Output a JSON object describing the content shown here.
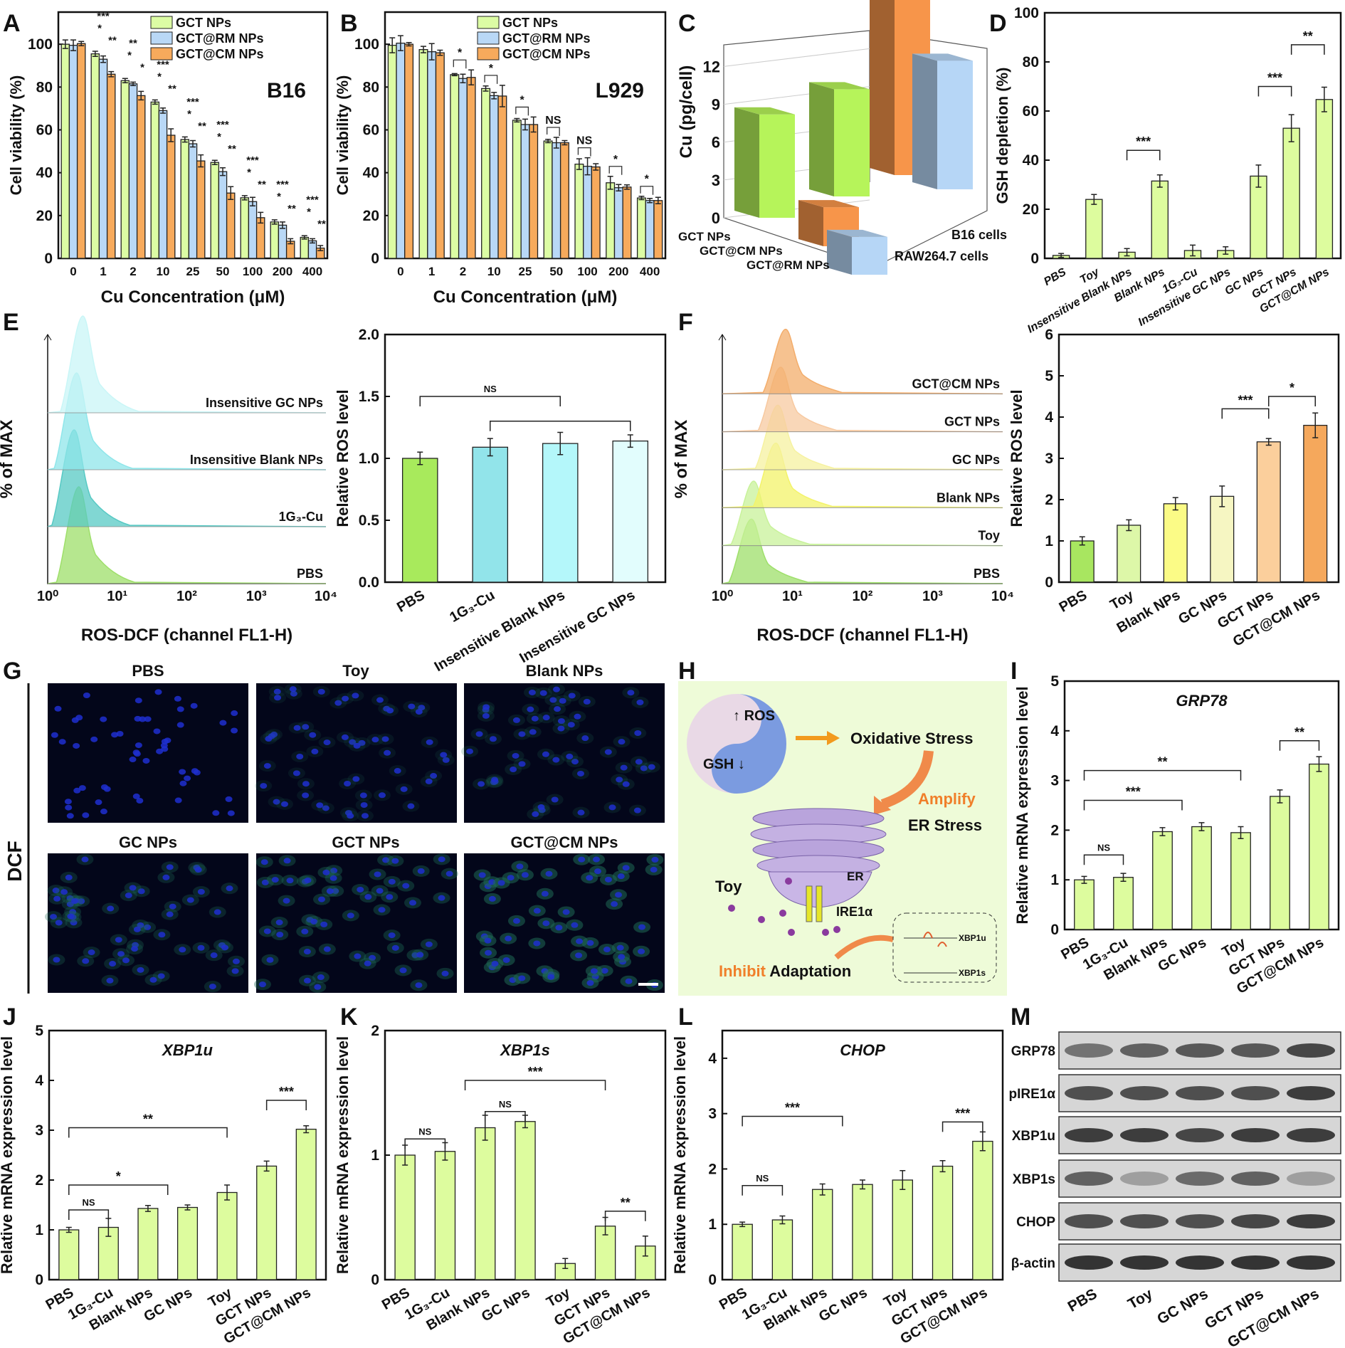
{
  "panel_letters": {
    "A": "A",
    "B": "B",
    "C": "C",
    "D": "D",
    "E": "E",
    "F": "F",
    "G": "G",
    "H": "H",
    "I": "I",
    "J": "J",
    "K": "K",
    "L": "L",
    "M": "M"
  },
  "chart_data": [
    {
      "id": "A",
      "type": "bar",
      "grouped": true,
      "title": "B16",
      "xlabel": "Cu Concentration (μM)",
      "ylabel": "Cell viability (%)",
      "categories": [
        "0",
        "1",
        "2",
        "10",
        "25",
        "50",
        "100",
        "200",
        "400"
      ],
      "ylim": [
        0,
        115
      ],
      "yticks": [
        0,
        20,
        40,
        60,
        80,
        100
      ],
      "legend": "top-right",
      "series": [
        {
          "name": "GCT NPs",
          "color": "#dcfca4",
          "values": [
            100,
            95.5,
            83,
            73,
            55.5,
            44.8,
            28.3,
            17,
            9.8
          ],
          "errors": [
            2,
            1.2,
            1,
            1,
            1.2,
            1,
            1,
            1,
            0.8
          ]
        },
        {
          "name": "GCT@RM NPs",
          "color": "#b9d8f6",
          "values": [
            99.5,
            93,
            81.5,
            69,
            53.5,
            40.5,
            26.5,
            15.5,
            8.2
          ],
          "errors": [
            2.5,
            1.5,
            0.8,
            1.2,
            1.5,
            1.8,
            2,
            1.5,
            1
          ]
        },
        {
          "name": "GCT@CM NPs",
          "color": "#f7aa5c",
          "values": [
            100.3,
            86,
            76,
            57.5,
            45.5,
            30.5,
            19,
            8,
            4.8
          ],
          "errors": [
            1,
            1.2,
            2,
            3,
            2.8,
            3,
            2.5,
            1.2,
            1.2
          ]
        }
      ],
      "group_stars": [
        [],
        [
          "***",
          "*",
          "**"
        ],
        [
          "**",
          "*",
          "*"
        ],
        [
          "***",
          "*",
          "**"
        ],
        [
          "***",
          "*",
          "**"
        ],
        [
          "***",
          "*",
          "**"
        ],
        [
          "***",
          "*",
          "**"
        ],
        [
          "***",
          "*",
          "**"
        ],
        [
          "***",
          "*",
          "**"
        ]
      ]
    },
    {
      "id": "B",
      "type": "bar",
      "grouped": true,
      "title": "L929",
      "xlabel": "Cu Concentration (μM)",
      "ylabel": "Cell viability (%)",
      "categories": [
        "0",
        "1",
        "2",
        "10",
        "25",
        "50",
        "100",
        "200",
        "400"
      ],
      "ylim": [
        0,
        115
      ],
      "yticks": [
        0,
        20,
        40,
        60,
        80,
        100
      ],
      "legend": "top-right",
      "series": [
        {
          "name": "GCT NPs",
          "color": "#dcfca4",
          "values": [
            99.5,
            97.5,
            85.8,
            79.3,
            64.5,
            54.8,
            44,
            35.3,
            28.2
          ],
          "errors": [
            3.5,
            1.5,
            0.5,
            1.2,
            0.8,
            0.8,
            2.5,
            3,
            0.8
          ]
        },
        {
          "name": "GCT@RM NPs",
          "color": "#b9d8f6",
          "values": [
            100.5,
            96.5,
            84,
            76,
            62.5,
            54,
            43,
            33,
            27
          ],
          "errors": [
            3.5,
            3.8,
            2,
            1.5,
            2.5,
            2.5,
            4,
            1.5,
            1
          ]
        },
        {
          "name": "GCT@CM NPs",
          "color": "#f7aa5c",
          "values": [
            100,
            96,
            84.5,
            75.8,
            62.5,
            54,
            42.7,
            33.3,
            27
          ],
          "errors": [
            0.8,
            1.2,
            3.5,
            5,
            3.5,
            1,
            1.5,
            1,
            1.5
          ]
        }
      ],
      "group_labels": [
        "",
        "",
        "*",
        "*",
        "*",
        "NS",
        "NS",
        "*",
        "*"
      ]
    },
    {
      "id": "C",
      "type": "bar3d",
      "ylabel": "Cu (pg/cell)",
      "ylim": [
        0,
        14
      ],
      "yticks": [
        0,
        3,
        6,
        9,
        12
      ],
      "categories": [
        "GCT NPs",
        "GCT@CM NPs",
        "GCT@RM NPs"
      ],
      "series": [
        {
          "name": "RAW264.7 cells",
          "values": [
            8.2,
            3.1,
            3.0
          ]
        },
        {
          "name": "B16 cells",
          "values": [
            8.5,
            14.2,
            10.2
          ]
        }
      ],
      "colors": [
        "#b6f45a",
        "#f7954a",
        "#b6d6f6"
      ]
    },
    {
      "id": "D",
      "type": "bar",
      "ylabel": "GSH depletion (%)",
      "ylim": [
        0,
        100
      ],
      "yticks": [
        0,
        20,
        40,
        60,
        80,
        100
      ],
      "rotate": true,
      "italic_x": true,
      "categories": [
        "PBS",
        "Toy",
        "Insensitive Blank NPs",
        "Blank NPs",
        "1G₃-Cu",
        "Insensitive GC NPs",
        "GC NPs",
        "GCT NPs",
        "GCT@CM NPs"
      ],
      "series": [
        {
          "color": "#ddfc9e",
          "values": [
            1.2,
            24,
            2.5,
            31.5,
            3.2,
            3.2,
            33.5,
            53,
            64.7
          ],
          "errors": [
            0.8,
            2,
            1.5,
            2.5,
            2.2,
            1.5,
            4.5,
            5.5,
            5
          ]
        }
      ],
      "brackets": [
        {
          "from": 2,
          "to": 3,
          "y": 44,
          "label": "***"
        },
        {
          "from": 6,
          "to": 7,
          "y": 70,
          "label": "***"
        },
        {
          "from": 7,
          "to": 8,
          "y": 87,
          "label": "**"
        }
      ]
    },
    {
      "id": "E_hist",
      "type": "histogram",
      "xlabel": "ROS-DCF (channel FL1-H)",
      "ylabel": "% of MAX",
      "xticks": [
        "10⁰",
        "10¹",
        "10²",
        "10³",
        "10⁴"
      ],
      "tracks": [
        {
          "label": "PBS",
          "peak": 2.8,
          "color": "#9edf6a"
        },
        {
          "label": "1G₃-Cu",
          "peak": 2.4,
          "color": "#57c9c4"
        },
        {
          "label": "Insensitive Blank NPs",
          "peak": 2.6,
          "color": "#8fe6ea"
        },
        {
          "label": "Insensitive GC NPs",
          "peak": 3.2,
          "color": "#c9f6f7"
        }
      ]
    },
    {
      "id": "E_bar",
      "type": "bar",
      "ylabel": "Relative ROS level",
      "ylim": [
        0,
        2
      ],
      "yticks": [
        0,
        0.5,
        1,
        1.5,
        2
      ],
      "ytick_labels": [
        "0.0",
        "0.5",
        "1.0",
        "1.5",
        "2.0"
      ],
      "rotate": true,
      "categories": [
        "PBS",
        "1G₃-Cu",
        "Insensitive Blank NPs",
        "Insensitive GC NPs"
      ],
      "series": [
        {
          "colors": [
            "#a8ea5c",
            "#92e4ea",
            "#b4f7fa",
            "#e2fdfd"
          ],
          "values": [
            1.0,
            1.09,
            1.12,
            1.14
          ],
          "errors": [
            0.05,
            0.07,
            0.09,
            0.05
          ]
        }
      ],
      "brackets": [
        {
          "from": 0,
          "to": 2,
          "y": 1.5,
          "label": "NS"
        },
        {
          "from": 1,
          "to": 3,
          "y": 1.3,
          "label": ""
        }
      ]
    },
    {
      "id": "F_hist",
      "type": "histogram",
      "xlabel": "ROS-DCF (channel FL1-H)",
      "ylabel": "% of MAX",
      "xticks": [
        "10⁰",
        "10¹",
        "10²",
        "10³",
        "10⁴"
      ],
      "tracks": [
        {
          "label": "PBS",
          "peak": 2.6,
          "color": "#9edf6a"
        },
        {
          "label": "Toy",
          "peak": 2.8,
          "color": "#c8f29a"
        },
        {
          "label": "Blank NPs",
          "peak": 5.8,
          "color": "#f3f36a"
        },
        {
          "label": "GC NPs",
          "peak": 6.2,
          "color": "#f6f2a0"
        },
        {
          "label": "GCT NPs",
          "peak": 6.8,
          "color": "#f7c9a0"
        },
        {
          "label": "GCT@CM NPs",
          "peak": 8.0,
          "color": "#f3ad6b"
        }
      ]
    },
    {
      "id": "F_bar",
      "type": "bar",
      "ylabel": "Relative ROS level",
      "ylim": [
        0,
        6
      ],
      "yticks": [
        0,
        1,
        2,
        3,
        4,
        5,
        6
      ],
      "rotate": true,
      "categories": [
        "PBS",
        "Toy",
        "Blank NPs",
        "GC NPs",
        "GCT NPs",
        "GCT@CM NPs"
      ],
      "series": [
        {
          "colors": [
            "#a8e660",
            "#ddf7a8",
            "#fbfb86",
            "#f6f6c2",
            "#fbcf9c",
            "#f5a85c"
          ],
          "values": [
            1.0,
            1.38,
            1.9,
            2.08,
            3.4,
            3.8
          ],
          "errors": [
            0.1,
            0.13,
            0.15,
            0.25,
            0.08,
            0.3
          ]
        }
      ],
      "brackets": [
        {
          "from": 3,
          "to": 4,
          "y": 4.2,
          "label": "***"
        },
        {
          "from": 4,
          "to": 5,
          "y": 4.5,
          "label": "*"
        }
      ]
    },
    {
      "id": "I",
      "type": "bar",
      "title": "GRP78",
      "ylabel": "Relative mRNA expression level",
      "ylim": [
        0,
        5
      ],
      "yticks": [
        0,
        1,
        2,
        3,
        4,
        5
      ],
      "rotate": true,
      "categories": [
        "PBS",
        "1G₃-Cu",
        "Blank NPs",
        "GC NPs",
        "Toy",
        "GCT NPs",
        "GCT@CM NPs"
      ],
      "series": [
        {
          "color": "#ddfc9e",
          "values": [
            1.0,
            1.05,
            1.97,
            2.07,
            1.95,
            2.68,
            3.33
          ],
          "errors": [
            0.07,
            0.08,
            0.08,
            0.08,
            0.12,
            0.13,
            0.15
          ]
        }
      ],
      "brackets": [
        {
          "from": 0,
          "to": 1,
          "y": 1.5,
          "label": "NS"
        },
        {
          "from": 0,
          "to": 2.5,
          "y": 2.6,
          "label": "***"
        },
        {
          "from": 0,
          "to": 4,
          "y": 3.2,
          "label": "**"
        },
        {
          "from": 5,
          "to": 6,
          "y": 3.8,
          "label": "**"
        }
      ]
    },
    {
      "id": "J",
      "type": "bar",
      "title": "XBP1u",
      "ylabel": "Relative mRNA expression level",
      "ylim": [
        0,
        5
      ],
      "yticks": [
        0,
        1,
        2,
        3,
        4,
        5
      ],
      "rotate": true,
      "categories": [
        "PBS",
        "1G₃-Cu",
        "Blank NPs",
        "GC NPs",
        "Toy",
        "GCT NPs",
        "GCT@CM NPs"
      ],
      "series": [
        {
          "color": "#ddfc9e",
          "values": [
            1.0,
            1.05,
            1.43,
            1.45,
            1.75,
            2.28,
            3.02
          ],
          "errors": [
            0.05,
            0.18,
            0.06,
            0.05,
            0.15,
            0.1,
            0.07
          ]
        }
      ],
      "brackets": [
        {
          "from": 0,
          "to": 1,
          "y": 1.4,
          "label": "NS"
        },
        {
          "from": 0,
          "to": 2.5,
          "y": 1.9,
          "label": "*"
        },
        {
          "from": 0,
          "to": 4,
          "y": 3.05,
          "label": "**"
        },
        {
          "from": 5,
          "to": 6,
          "y": 3.6,
          "label": "***"
        }
      ]
    },
    {
      "id": "K",
      "type": "bar",
      "title": "XBP1s",
      "ylabel": "Relative mRNA expression level",
      "ylim": [
        0,
        2
      ],
      "yticks": [
        0,
        1,
        2
      ],
      "rotate": true,
      "categories": [
        "PBS",
        "1G₃-Cu",
        "Blank NPs",
        "GC NPs",
        "Toy",
        "GCT NPs",
        "GCT@CM NPs"
      ],
      "series": [
        {
          "color": "#ddfc9e",
          "values": [
            1.0,
            1.03,
            1.22,
            1.27,
            0.13,
            0.43,
            0.27
          ],
          "errors": [
            0.08,
            0.07,
            0.1,
            0.05,
            0.04,
            0.07,
            0.08
          ]
        }
      ],
      "brackets": [
        {
          "from": 0,
          "to": 1,
          "y": 1.13,
          "label": "NS"
        },
        {
          "from": 2,
          "to": 3,
          "y": 1.35,
          "label": "NS"
        },
        {
          "from": 1.5,
          "to": 5,
          "y": 1.6,
          "label": "***"
        },
        {
          "from": 5,
          "to": 6,
          "y": 0.55,
          "label": "**"
        }
      ]
    },
    {
      "id": "L",
      "type": "bar",
      "title": "CHOP",
      "ylabel": "Relative mRNA expression level",
      "ylim": [
        0,
        4.5
      ],
      "yticks": [
        0,
        1,
        2,
        3,
        4
      ],
      "rotate": true,
      "categories": [
        "PBS",
        "1G₃-Cu",
        "Blank NPs",
        "GC NPs",
        "Toy",
        "GCT NPs",
        "GCT@CM NPs"
      ],
      "series": [
        {
          "color": "#ddfc9e",
          "values": [
            1.0,
            1.08,
            1.63,
            1.72,
            1.8,
            2.05,
            2.5
          ],
          "errors": [
            0.04,
            0.07,
            0.1,
            0.08,
            0.17,
            0.1,
            0.17
          ]
        }
      ],
      "brackets": [
        {
          "from": 0,
          "to": 1,
          "y": 1.7,
          "label": "NS"
        },
        {
          "from": 0,
          "to": 2.5,
          "y": 2.95,
          "label": "***"
        },
        {
          "from": 5,
          "to": 6,
          "y": 2.85,
          "label": "***"
        }
      ]
    }
  ],
  "panel_G": {
    "side_label": "DCF",
    "images": [
      {
        "label": "PBS"
      },
      {
        "label": "Toy"
      },
      {
        "label": "Blank NPs"
      },
      {
        "label": "GC NPs"
      },
      {
        "label": "GCT NPs"
      },
      {
        "label": "GCT@CM NPs"
      }
    ]
  },
  "panel_H": {
    "ros": "ROS",
    "gsh": "GSH",
    "oxidative": "Oxidative Stress",
    "amplify": "Amplify",
    "er_stress": "ER Stress",
    "er": "ER",
    "toy": "Toy",
    "ire1a": "IRE1α",
    "inhibit": "Inhibit",
    "adaptation": "Adaptation",
    "xbp1u": "XBP1u",
    "xbp1s": "XBP1s",
    "colors": {
      "background": "#eefbd8",
      "accent": "#f07f2a",
      "ros": "#7b9be0",
      "er": "#b9a4dc"
    }
  },
  "panel_M": {
    "rows": [
      "GRP78",
      "pIRE1α",
      "XBP1u",
      "XBP1s",
      "CHOP",
      "β-actin"
    ],
    "lanes": [
      "PBS",
      "Toy",
      "GC NPs",
      "GCT NPs",
      "GCT@CM NPs"
    ]
  }
}
